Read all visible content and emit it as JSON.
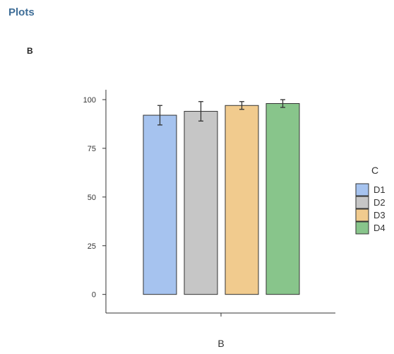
{
  "header": {
    "section_title": "Plots",
    "panel_label": "B"
  },
  "chart_data": {
    "type": "bar",
    "categories": [
      "D1",
      "D2",
      "D3",
      "D4"
    ],
    "values": [
      92,
      94,
      97,
      98
    ],
    "error_low": [
      87,
      89,
      95,
      96
    ],
    "error_high": [
      97,
      99,
      99,
      100
    ],
    "xlabel": "B",
    "ylabel": "",
    "ylim": [
      0,
      100
    ],
    "yticks": [
      0,
      25,
      50,
      75,
      100
    ],
    "xticks": [
      ""
    ],
    "grid": false,
    "legend": {
      "title": "C",
      "position": "right",
      "entries": [
        "D1",
        "D2",
        "D3",
        "D4"
      ]
    },
    "colors": [
      "#a6c3ef",
      "#c6c6c6",
      "#f1cb8e",
      "#88c58b"
    ]
  }
}
